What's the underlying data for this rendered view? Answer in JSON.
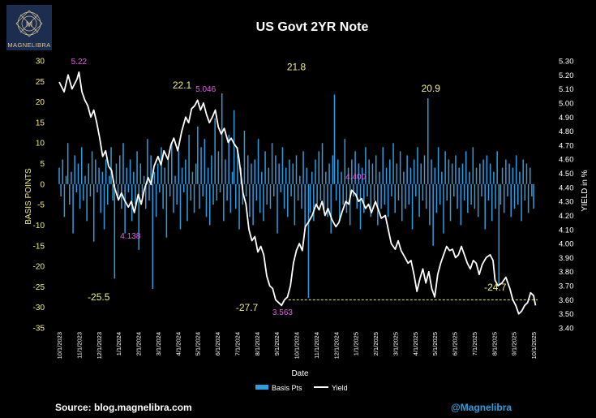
{
  "brand": {
    "name": "MAGNELIBRA"
  },
  "source": "Source: blog.magnelibra.com",
  "handle": "@Magnelibra",
  "chart_data": {
    "type": "bar+line",
    "title": "US Govt 2YR Note",
    "xlabel": "Date",
    "ylabel_left": "BASIS POINTS",
    "ylabel_right": "YIELD in %",
    "ylim_left": [
      -35,
      30
    ],
    "ylim_right": [
      3.4,
      5.3
    ],
    "yticks_left": [
      30,
      25,
      20,
      15,
      10,
      5,
      0,
      -5,
      -10,
      -15,
      -20,
      -25,
      -30,
      -35
    ],
    "yticks_right": [
      "5.30",
      "5.20",
      "5.10",
      "5.00",
      "4.90",
      "4.80",
      "4.70",
      "4.60",
      "4.50",
      "4.40",
      "4.30",
      "4.20",
      "4.10",
      "4.00",
      "3.90",
      "3.80",
      "3.70",
      "3.60",
      "3.50",
      "3.40"
    ],
    "x_ticks": [
      "10/1/2023",
      "11/1/2023",
      "12/1/2023",
      "1/1/2024",
      "2/1/2024",
      "3/1/2024",
      "4/1/2024",
      "5/1/2024",
      "6/1/2024",
      "7/1/2024",
      "8/1/2024",
      "9/1/2024",
      "10/1/2024",
      "11/1/2024",
      "12/1/2024",
      "1/1/2025",
      "2/1/2025",
      "3/1/2025",
      "4/1/2025",
      "5/1/2025",
      "6/1/2025",
      "7/1/2025",
      "8/1/2025",
      "9/1/2025",
      "10/1/2025"
    ],
    "legend": [
      "Basis Pts",
      "Yield"
    ],
    "reference_line_yield": 3.6,
    "yield_series": [
      [
        0,
        5.15
      ],
      [
        0.25,
        5.08
      ],
      [
        0.45,
        5.2
      ],
      [
        0.65,
        5.1
      ],
      [
        0.9,
        5.17
      ],
      [
        1.0,
        5.22
      ],
      [
        1.15,
        5.08
      ],
      [
        1.3,
        5.02
      ],
      [
        1.45,
        4.98
      ],
      [
        1.6,
        4.9
      ],
      [
        1.75,
        4.95
      ],
      [
        1.9,
        4.86
      ],
      [
        2.05,
        4.75
      ],
      [
        2.2,
        4.62
      ],
      [
        2.35,
        4.66
      ],
      [
        2.5,
        4.55
      ],
      [
        2.65,
        4.52
      ],
      [
        2.8,
        4.4
      ],
      [
        3.0,
        4.31
      ],
      [
        3.15,
        4.36
      ],
      [
        3.3,
        4.31
      ],
      [
        3.5,
        4.26
      ],
      [
        3.65,
        4.3
      ],
      [
        3.8,
        4.22
      ],
      [
        4.0,
        4.35
      ],
      [
        4.15,
        4.28
      ],
      [
        4.3,
        4.38
      ],
      [
        4.5,
        4.47
      ],
      [
        4.65,
        4.42
      ],
      [
        4.8,
        4.55
      ],
      [
        5.0,
        4.62
      ],
      [
        5.15,
        4.56
      ],
      [
        5.3,
        4.66
      ],
      [
        5.5,
        4.6
      ],
      [
        5.65,
        4.7
      ],
      [
        5.8,
        4.75
      ],
      [
        6.0,
        4.66
      ],
      [
        6.2,
        4.8
      ],
      [
        6.4,
        4.9
      ],
      [
        6.55,
        4.86
      ],
      [
        6.7,
        4.96
      ],
      [
        6.85,
        4.98
      ],
      [
        7.0,
        5.02
      ],
      [
        7.15,
        4.95
      ],
      [
        7.3,
        5.0
      ],
      [
        7.45,
        4.92
      ],
      [
        7.6,
        4.86
      ],
      [
        7.75,
        4.9
      ],
      [
        7.9,
        4.95
      ],
      [
        8.05,
        4.83
      ],
      [
        8.2,
        4.78
      ],
      [
        8.35,
        4.82
      ],
      [
        8.55,
        4.72
      ],
      [
        8.7,
        4.75
      ],
      [
        8.85,
        4.71
      ],
      [
        9.0,
        4.68
      ],
      [
        9.1,
        4.6
      ],
      [
        9.2,
        4.48
      ],
      [
        9.3,
        4.36
      ],
      [
        9.45,
        4.28
      ],
      [
        9.6,
        4.1
      ],
      [
        9.75,
        4.02
      ],
      [
        9.9,
        4.05
      ],
      [
        10.05,
        3.94
      ],
      [
        10.2,
        3.98
      ],
      [
        10.35,
        3.92
      ],
      [
        10.5,
        3.77
      ],
      [
        10.65,
        3.7
      ],
      [
        10.8,
        3.68
      ],
      [
        10.95,
        3.6
      ],
      [
        11.1,
        3.58
      ],
      [
        11.25,
        3.56
      ],
      [
        11.4,
        3.6
      ],
      [
        11.55,
        3.62
      ],
      [
        11.7,
        3.7
      ],
      [
        11.85,
        3.86
      ],
      [
        12.0,
        3.95
      ],
      [
        12.15,
        4.0
      ],
      [
        12.3,
        3.95
      ],
      [
        12.45,
        4.12
      ],
      [
        12.6,
        4.15
      ],
      [
        12.8,
        4.2
      ],
      [
        13.0,
        4.28
      ],
      [
        13.15,
        4.24
      ],
      [
        13.3,
        4.3
      ],
      [
        13.45,
        4.2
      ],
      [
        13.6,
        4.25
      ],
      [
        13.8,
        4.17
      ],
      [
        14.0,
        4.12
      ],
      [
        14.15,
        4.15
      ],
      [
        14.3,
        4.22
      ],
      [
        14.5,
        4.3
      ],
      [
        14.65,
        4.28
      ],
      [
        14.8,
        4.38
      ],
      [
        15.0,
        4.35
      ],
      [
        15.15,
        4.3
      ],
      [
        15.3,
        4.32
      ],
      [
        15.5,
        4.25
      ],
      [
        15.65,
        4.28
      ],
      [
        15.8,
        4.22
      ],
      [
        16.0,
        4.3
      ],
      [
        16.15,
        4.24
      ],
      [
        16.3,
        4.18
      ],
      [
        16.5,
        4.2
      ],
      [
        16.65,
        4.1
      ],
      [
        16.8,
        4.0
      ],
      [
        17.0,
        3.96
      ],
      [
        17.15,
        4.02
      ],
      [
        17.3,
        3.95
      ],
      [
        17.5,
        3.9
      ],
      [
        17.65,
        3.86
      ],
      [
        17.8,
        3.88
      ],
      [
        17.95,
        3.78
      ],
      [
        18.1,
        3.66
      ],
      [
        18.25,
        3.75
      ],
      [
        18.4,
        3.82
      ],
      [
        18.55,
        3.72
      ],
      [
        18.7,
        3.8
      ],
      [
        18.85,
        3.68
      ],
      [
        19.0,
        3.62
      ],
      [
        19.15,
        3.78
      ],
      [
        19.3,
        3.86
      ],
      [
        19.45,
        3.92
      ],
      [
        19.6,
        3.98
      ],
      [
        19.75,
        3.95
      ],
      [
        19.9,
        3.96
      ],
      [
        20.05,
        3.9
      ],
      [
        20.2,
        3.92
      ],
      [
        20.35,
        3.98
      ],
      [
        20.5,
        3.92
      ],
      [
        20.65,
        3.86
      ],
      [
        20.8,
        3.82
      ],
      [
        20.95,
        3.88
      ],
      [
        21.1,
        3.86
      ],
      [
        21.25,
        3.78
      ],
      [
        21.4,
        3.85
      ],
      [
        21.6,
        3.9
      ],
      [
        21.8,
        3.92
      ],
      [
        21.95,
        3.88
      ],
      [
        22.05,
        3.74
      ],
      [
        22.2,
        3.7
      ],
      [
        22.4,
        3.72
      ],
      [
        22.6,
        3.76
      ],
      [
        22.8,
        3.68
      ],
      [
        22.95,
        3.6
      ],
      [
        23.1,
        3.56
      ],
      [
        23.25,
        3.5
      ],
      [
        23.4,
        3.52
      ],
      [
        23.55,
        3.56
      ],
      [
        23.7,
        3.58
      ],
      [
        23.85,
        3.65
      ],
      [
        24.0,
        3.63
      ],
      [
        24.1,
        3.56
      ]
    ],
    "basis_pts": [
      4,
      -3,
      6,
      -8,
      2,
      10,
      -5,
      3,
      -12,
      7,
      -2,
      5,
      -6,
      9,
      -4,
      2,
      -9,
      5,
      -3,
      8,
      -14,
      6,
      -2,
      4,
      -7,
      3,
      -11,
      6,
      -5,
      2,
      9,
      -4,
      -23,
      5,
      -3,
      7,
      -6,
      10,
      -12,
      4,
      -2,
      6,
      -9,
      3,
      -5,
      8,
      -16,
      5,
      -3,
      2,
      -6,
      11,
      -4,
      7,
      -25.5,
      3,
      -8,
      5,
      -2,
      9,
      -6,
      4,
      -13,
      6,
      -3,
      10,
      -7,
      2,
      -5,
      8,
      -11,
      4,
      -2,
      6,
      -9,
      12,
      -4,
      3,
      -7,
      5,
      14,
      -6,
      9,
      -3,
      11,
      -8,
      4,
      -10,
      7,
      -5,
      16,
      -4,
      8,
      -2,
      22.1,
      -9,
      6,
      -4,
      12,
      -7,
      3,
      18,
      -6,
      9,
      -11,
      4,
      -5,
      13,
      -3,
      7,
      -8,
      5,
      -10,
      6,
      -4,
      11,
      -7,
      3,
      -9,
      8,
      -5,
      4,
      -6,
      10,
      -3,
      7,
      -12,
      5,
      -2,
      9,
      -6,
      4,
      -8,
      6,
      -3,
      5,
      -10,
      7,
      -4,
      2,
      -6,
      8,
      -11,
      4,
      -27.7,
      -7,
      3,
      -9,
      6,
      -5,
      8,
      -4,
      10,
      -6,
      3,
      -8,
      5,
      -12,
      7,
      21.8,
      -4,
      6,
      -9,
      3,
      -5,
      11,
      -7,
      4,
      -10,
      6,
      -3,
      8,
      -6,
      5,
      -11,
      4,
      -7,
      9,
      -3,
      6,
      -8,
      5,
      -4,
      7,
      -10,
      3,
      -6,
      9,
      -5,
      4,
      -8,
      6,
      -3,
      10,
      -7,
      5,
      -4,
      8,
      -9,
      3,
      -6,
      7,
      -5,
      4,
      -11,
      6,
      -3,
      9,
      -8,
      5,
      -4,
      7,
      -6,
      20.9,
      -10,
      6,
      -15,
      4,
      -7,
      9,
      -5,
      3,
      -12,
      8,
      -4,
      6,
      -9,
      5,
      -3,
      7,
      -6,
      4,
      -10,
      5,
      -4,
      8,
      -7,
      3,
      -5,
      9,
      -6,
      4,
      -8,
      5,
      -3,
      6,
      -11,
      7,
      -4,
      5,
      -9,
      3,
      -6,
      8,
      -24.7,
      -5,
      4,
      -7,
      6,
      -3,
      5,
      -8,
      4,
      -6,
      7,
      -5,
      3,
      -9,
      6,
      -4,
      5,
      -7,
      4,
      -3,
      -6
    ],
    "annotations": [
      {
        "text": "5.22",
        "x": 1.0,
        "y_axis": "yield",
        "y": 5.22,
        "color": "#e060e8"
      },
      {
        "text": "-25.5",
        "x": 2.0,
        "y_axis": "bp",
        "y": -25.5,
        "color": "#f0ef7c"
      },
      {
        "text": "4.138",
        "x": 3.6,
        "y_axis": "yield",
        "y": 4.138,
        "color": "#e060e8"
      },
      {
        "text": "22.1",
        "x": 6.3,
        "y_axis": "bp",
        "y": 22.1,
        "color": "#f0ef7c"
      },
      {
        "text": "5.046",
        "x": 7.0,
        "y_axis": "yield",
        "y": 5.046,
        "color": "#e060e8"
      },
      {
        "text": "21.8",
        "x": 12.0,
        "y_axis": "bp",
        "y": 21.8,
        "color": "#f0ef7c"
      },
      {
        "text": "-27.7",
        "x": 9.5,
        "y_axis": "bp",
        "y": -27.7,
        "color": "#f0ef7c"
      },
      {
        "text": "3.563",
        "x": 11.3,
        "y_axis": "yield",
        "y": 3.563,
        "color": "#e060e8"
      },
      {
        "text": "4.400",
        "x": 15.0,
        "y_axis": "yield",
        "y": 4.4,
        "color": "#e060e8"
      },
      {
        "text": "20.9",
        "x": 18.8,
        "y_axis": "bp",
        "y": 20.9,
        "color": "#f0ef7c"
      },
      {
        "text": "-24.7",
        "x": 21.9,
        "y_axis": "bp",
        "y": -24.7,
        "color": "#f0ef7c"
      }
    ],
    "colors": {
      "bars": "#2d9fe0",
      "line": "#ffffff",
      "left_axis": "#f0ef7c",
      "right_axis": "#ffffff",
      "refline": "#f0ef7c"
    }
  }
}
